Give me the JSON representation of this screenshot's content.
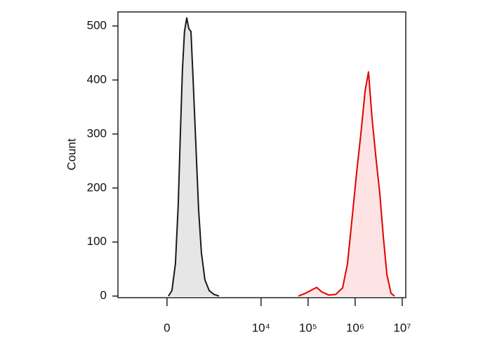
{
  "chart_data": {
    "type": "line",
    "x_label": null,
    "y_label": "Count",
    "xscale": "biexponential",
    "xlim": [
      -1100,
      11900000
    ],
    "ylim": [
      -3,
      526
    ],
    "xticks": [
      0,
      {
        "value": 10000,
        "label": "10⁴"
      },
      {
        "value": 100000,
        "label": "10⁵"
      },
      {
        "value": 1000000,
        "label": "10⁶"
      },
      {
        "value": 10000000,
        "label": "10⁷"
      }
    ],
    "yticks": [
      0,
      100,
      200,
      300,
      400,
      500
    ],
    "series": [
      {
        "color": "#1a1a1a",
        "fill": "#e6e6e6",
        "x": [
          14,
          49,
          85,
          116,
          141,
          167,
          194,
          225,
          258,
          293,
          332,
          388,
          450,
          522,
          627,
          778,
          993,
          1268
        ],
        "values": [
          0,
          10,
          60,
          170,
          300,
          420,
          490,
          515,
          495,
          490,
          400,
          280,
          160,
          80,
          30,
          10,
          3,
          0
        ]
      },
      {
        "color": "#e00000",
        "fill": "#fde3e3",
        "x": [
          62300,
          87500,
          123000,
          152000,
          193000,
          272000,
          385000,
          541000,
          687000,
          874000,
          1080000,
          1320000,
          1630000,
          1920000,
          2280000,
          2810000,
          3340000,
          3960000,
          4720000,
          5780000,
          6850000
        ],
        "values": [
          0,
          5,
          12,
          16,
          8,
          2,
          3,
          15,
          60,
          150,
          230,
          300,
          380,
          415,
          330,
          250,
          190,
          110,
          40,
          5,
          0
        ]
      }
    ]
  }
}
